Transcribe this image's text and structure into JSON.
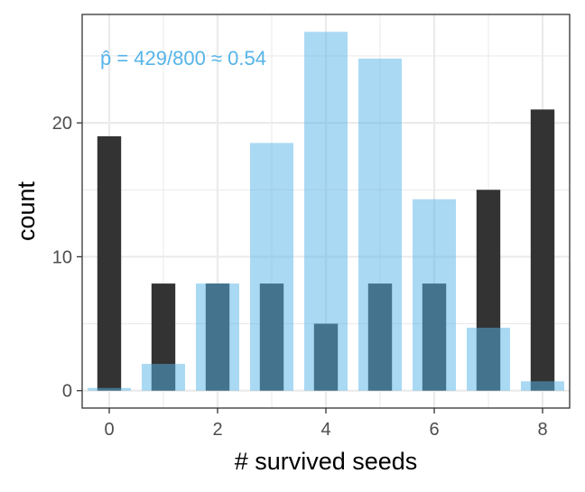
{
  "chart_data": {
    "type": "bar",
    "xlabel": "# survived seeds",
    "ylabel": "count",
    "annotation": "p̂ = 429/800 ≈ 0.54",
    "x_ticks": [
      "0",
      "2",
      "4",
      "6",
      "8"
    ],
    "y_ticks": [
      "0",
      "10",
      "20"
    ],
    "xlim": [
      -0.5,
      8.5
    ],
    "ylim": [
      -1.3,
      28.1
    ],
    "grid": true,
    "categories": [
      0,
      1,
      2,
      3,
      4,
      5,
      6,
      7,
      8
    ],
    "series": [
      {
        "values": [
          19,
          8,
          8,
          8,
          5,
          8,
          8,
          15,
          21
        ],
        "color": "#333333",
        "opacity": 1
      },
      {
        "values": [
          0.2,
          2.0,
          8.0,
          18.5,
          26.8,
          24.8,
          14.3,
          4.7,
          0.7
        ],
        "color": "#56b4e9",
        "opacity": 0.5
      }
    ]
  }
}
